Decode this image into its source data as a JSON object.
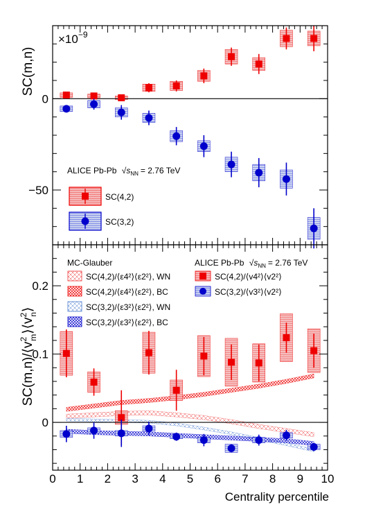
{
  "chart_data": [
    {
      "type": "scatter",
      "panel": "top",
      "multiplier_label": "×10",
      "multiplier_exponent": "−9",
      "ylabel": "SC(m,n)",
      "ylim": [
        -80,
        40
      ],
      "y_ticks": [
        {
          "v": 0,
          "label": "0"
        },
        {
          "v": -50,
          "label": "−50"
        }
      ],
      "x": [
        0.5,
        1.5,
        2.5,
        3.5,
        4.5,
        5.5,
        6.5,
        7.5,
        8.5,
        9.5
      ],
      "annotation": {
        "text": "ALICE Pb-Pb",
        "energy_label": "= 2.76 TeV"
      },
      "series": [
        {
          "name": "SC(4,2)",
          "color": "#ee0000",
          "marker": "square",
          "values": [
            2,
            1.5,
            0.5,
            6,
            7,
            12.5,
            23,
            19,
            33,
            33
          ],
          "stat_err": [
            1.5,
            1.2,
            1.2,
            2.5,
            3,
            4,
            5,
            5.5,
            6,
            7
          ],
          "syst_err": [
            1.2,
            1,
            1,
            2,
            2.5,
            3,
            4,
            3.5,
            4.5,
            4
          ]
        },
        {
          "name": "SC(3,2)",
          "color": "#0000cc",
          "marker": "circle",
          "values": [
            -5.5,
            -3,
            -7.5,
            -10.5,
            -20.5,
            -26,
            -36,
            -40.5,
            -44,
            -71
          ],
          "stat_err": [
            2,
            3,
            4,
            4,
            5,
            6,
            7,
            8,
            9,
            11
          ],
          "syst_err": [
            1.5,
            2,
            2.5,
            2.5,
            3,
            3,
            4,
            4.5,
            5,
            6
          ]
        }
      ]
    },
    {
      "type": "scatter",
      "panel": "bottom",
      "ylim": [
        -0.07,
        0.26
      ],
      "y_ticks": [
        {
          "v": 0,
          "label": "0"
        },
        {
          "v": 0.1,
          "label": "0.1"
        },
        {
          "v": 0.2,
          "label": "0.2"
        }
      ],
      "x_ticks": [
        0,
        1,
        2,
        3,
        4,
        5,
        6,
        7,
        8,
        9,
        10
      ],
      "xlim": [
        0,
        10
      ],
      "xlabel": "Centrality percentile",
      "model_title": "MC-Glauber",
      "annotation": {
        "text": "ALICE Pb-Pb",
        "energy_label": "= 2.76 TeV"
      },
      "x": [
        0.5,
        1.5,
        2.5,
        3.5,
        4.5,
        5.5,
        6.5,
        7.5,
        8.5,
        9.5
      ],
      "series": [
        {
          "name": "SC(4,2)/⟨v4²⟩⟨v2²⟩",
          "color": "#ee0000",
          "marker": "square",
          "values": [
            0.101,
            0.059,
            0.007,
            0.102,
            0.047,
            0.097,
            0.088,
            0.087,
            0.124,
            0.105
          ],
          "stat_err": [
            0.035,
            0.02,
            0.04,
            0.032,
            0.03,
            0.028,
            0.026,
            0.027,
            0.022,
            0.025
          ],
          "syst_err": [
            0.032,
            0.015,
            0.01,
            0.03,
            0.015,
            0.03,
            0.035,
            0.028,
            0.035,
            0.032
          ]
        },
        {
          "name": "SC(3,2)/⟨v3²⟩⟨v2²⟩",
          "color": "#0000cc",
          "marker": "circle",
          "values": [
            -0.017,
            -0.012,
            -0.016,
            -0.009,
            -0.021,
            -0.026,
            -0.038,
            -0.026,
            -0.019,
            -0.036
          ],
          "stat_err": [
            0.012,
            0.012,
            0.02,
            0.01,
            0.006,
            0.009,
            0.006,
            0.008,
            0.008,
            0.006
          ],
          "syst_err": [
            0.005,
            0.004,
            0.004,
            0.004,
            0.003,
            0.004,
            0.006,
            0.004,
            0.004,
            0.004
          ]
        }
      ],
      "model_bands": [
        {
          "name": "SC(4,2)/⟨ε4²⟩⟨ε2²⟩, WN",
          "color": "#ee3333",
          "style": "light-hatch",
          "x": [
            0.5,
            1.5,
            2.5,
            3.5,
            4.5,
            5.5,
            6.5,
            7.5,
            8.5,
            9.5
          ],
          "y": [
            0.009,
            0.011,
            0.013,
            0.014,
            0.011,
            0.007,
            0.001,
            -0.006,
            -0.012,
            -0.018
          ],
          "half_width": [
            0.003,
            0.003,
            0.003,
            0.003,
            0.003,
            0.003,
            0.003,
            0.003,
            0.003,
            0.003
          ]
        },
        {
          "name": "SC(4,2)/⟨ε4²⟩⟨ε2²⟩, BC",
          "color": "#ee0000",
          "style": "dense-hatch",
          "x": [
            0.5,
            1.5,
            2.5,
            3.5,
            4.5,
            5.5,
            6.5,
            7.5,
            8.5,
            9.5
          ],
          "y": [
            0.019,
            0.024,
            0.029,
            0.032,
            0.036,
            0.041,
            0.047,
            0.053,
            0.06,
            0.068
          ],
          "half_width": [
            0.003,
            0.003,
            0.003,
            0.003,
            0.003,
            0.003,
            0.003,
            0.003,
            0.003,
            0.003
          ]
        },
        {
          "name": "SC(3,2)/⟨ε3²⟩⟨ε2²⟩, WN",
          "color": "#4477cc",
          "style": "light-hatch",
          "x": [
            0.5,
            1.5,
            2.5,
            3.5,
            4.5,
            5.5,
            6.5,
            7.5,
            8.5,
            9.5
          ],
          "y": [
            0.004,
            0.003,
            0.002,
            0.001,
            -0.003,
            -0.009,
            -0.016,
            -0.024,
            -0.032,
            -0.041
          ],
          "half_width": [
            0.002,
            0.002,
            0.002,
            0.002,
            0.002,
            0.002,
            0.002,
            0.002,
            0.002,
            0.002
          ]
        },
        {
          "name": "SC(3,2)/⟨ε3²⟩⟨ε2²⟩, BC",
          "color": "#0000cc",
          "style": "dense-hatch",
          "x": [
            0.5,
            1.5,
            2.5,
            3.5,
            4.5,
            5.5,
            6.5,
            7.5,
            8.5,
            9.5
          ],
          "y": [
            -0.013,
            -0.015,
            -0.016,
            -0.017,
            -0.019,
            -0.021,
            -0.023,
            -0.025,
            -0.027,
            -0.031
          ],
          "half_width": [
            0.003,
            0.003,
            0.003,
            0.003,
            0.003,
            0.003,
            0.003,
            0.003,
            0.003,
            0.003
          ]
        }
      ]
    }
  ],
  "colors": {
    "red": "#ee0000",
    "blue": "#0000cc"
  }
}
